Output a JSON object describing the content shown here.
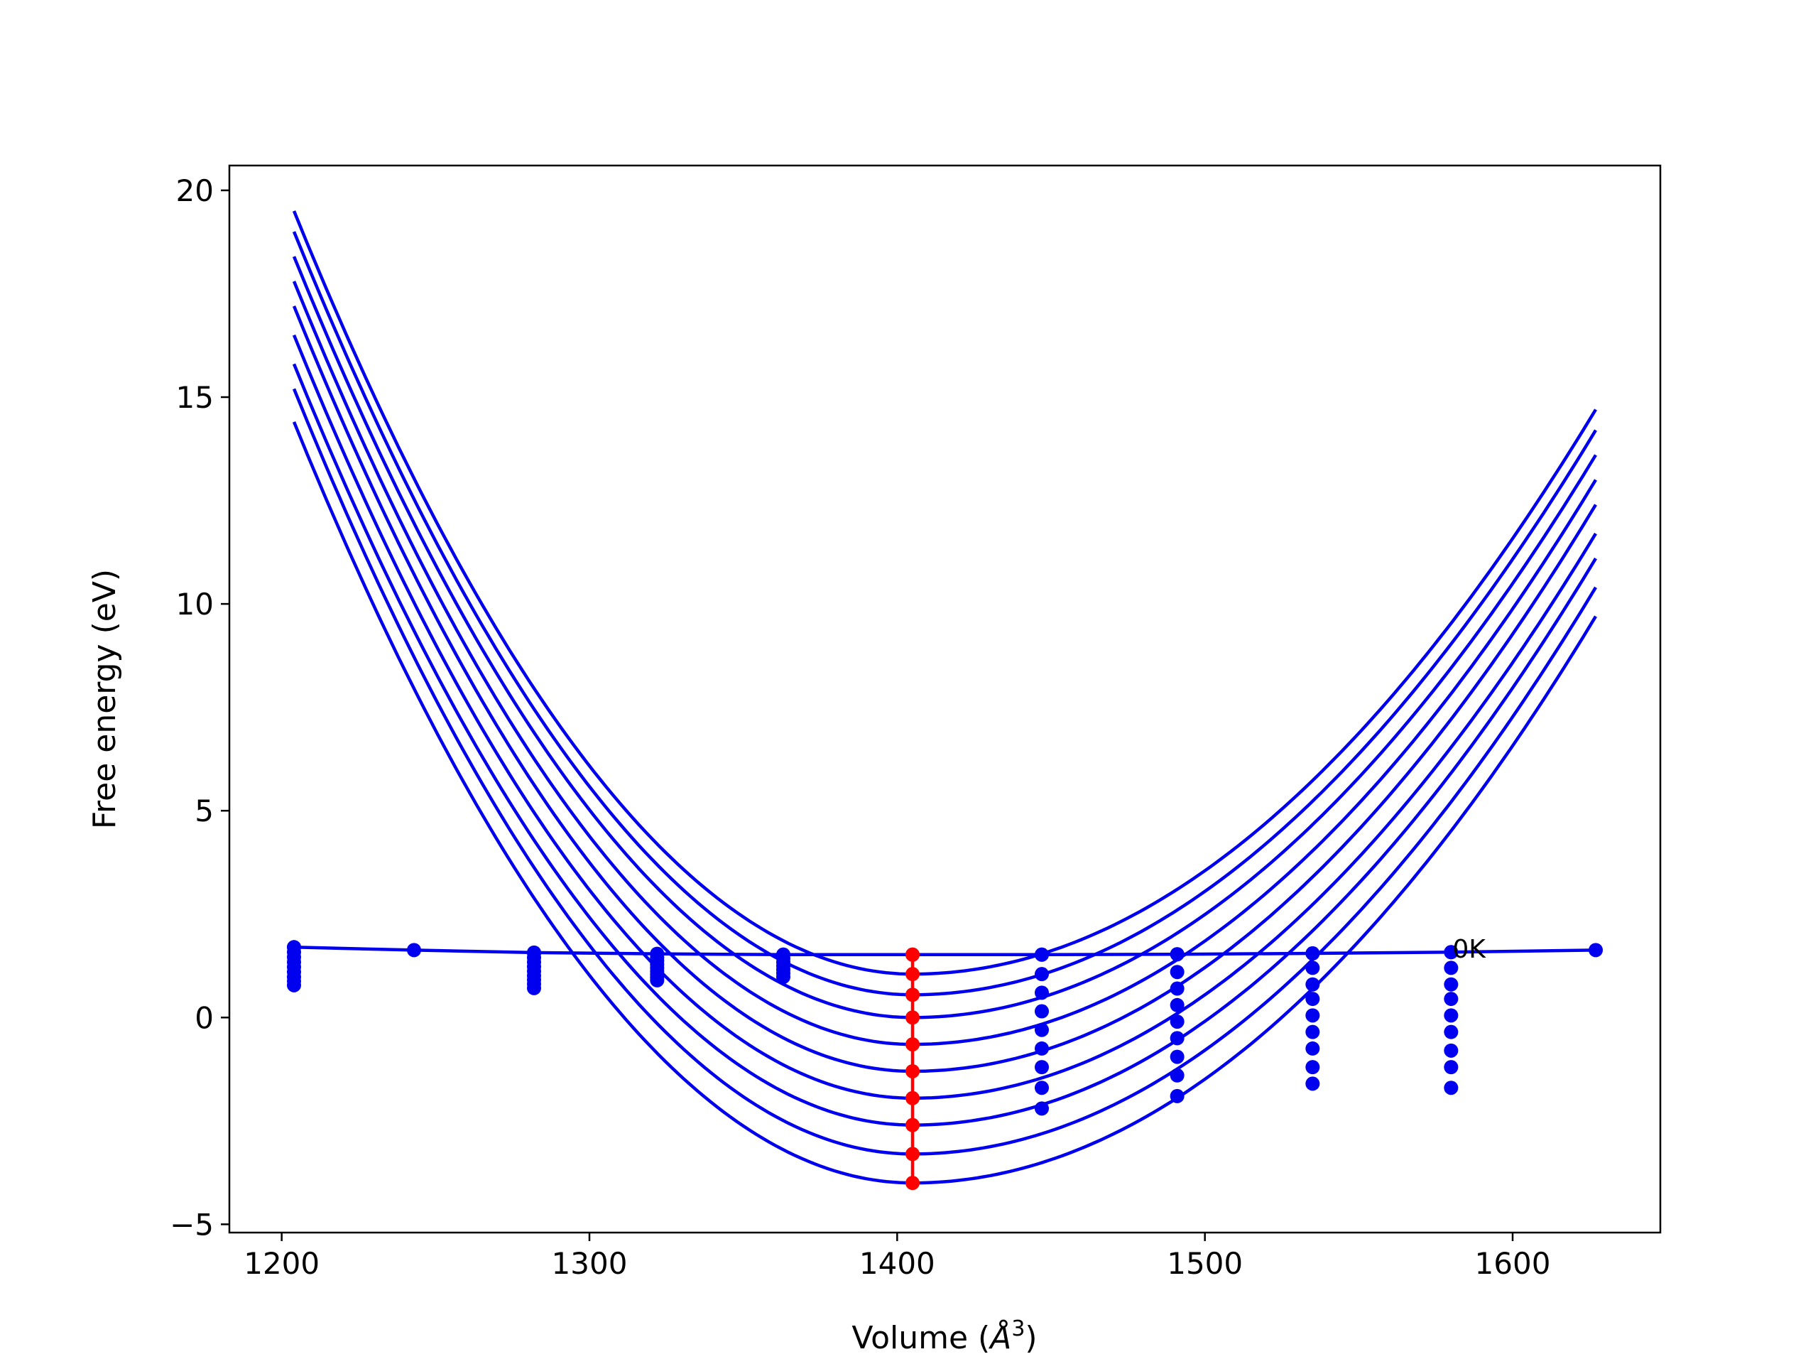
{
  "chart_data": {
    "type": "line",
    "title": "",
    "xlabel": "Volume (",
    "xlabel_unit": "Å",
    "xlabel_sup": "3",
    "xlabel_close": ")",
    "ylabel": "Free energy (eV)",
    "xlim": [
      1183,
      1648
    ],
    "ylim": [
      -5.2,
      20.6
    ],
    "xticks": [
      1200,
      1300,
      1400,
      1500,
      1600
    ],
    "yticks": [
      -5,
      0,
      5,
      10,
      15,
      20
    ],
    "xtick_labels": [
      "1200",
      "1300",
      "1400",
      "1500",
      "1600"
    ],
    "ytick_labels": [
      "−5",
      "0",
      "5",
      "10",
      "15",
      "20"
    ],
    "grid": false,
    "legend": "none",
    "colors": {
      "curves": "#0000ee",
      "points": "#0000ee",
      "highlight": "#ff0000",
      "axes": "#000000"
    },
    "annotation": {
      "text": "0K",
      "x": 1580,
      "y": 1.55
    },
    "curve_domain": [
      1204,
      1627
    ],
    "fit_curves": [
      {
        "v0": 1405.0,
        "minimum": -4.0,
        "left_end": 14.4,
        "right_end": 9.7
      },
      {
        "v0": 1405.0,
        "minimum": -3.3,
        "left_end": 15.2,
        "right_end": 10.4
      },
      {
        "v0": 1405.0,
        "minimum": -2.6,
        "left_end": 15.8,
        "right_end": 11.1
      },
      {
        "v0": 1405.0,
        "minimum": -1.95,
        "left_end": 16.5,
        "right_end": 11.7
      },
      {
        "v0": 1405.0,
        "minimum": -1.3,
        "left_end": 17.2,
        "right_end": 12.4
      },
      {
        "v0": 1405.0,
        "minimum": -0.65,
        "left_end": 17.8,
        "right_end": 13.0
      },
      {
        "v0": 1405.0,
        "minimum": 0.0,
        "left_end": 18.4,
        "right_end": 13.6
      },
      {
        "v0": 1405.0,
        "minimum": 0.55,
        "left_end": 19.0,
        "right_end": 14.2
      },
      {
        "v0": 1405.0,
        "minimum": 1.05,
        "left_end": 19.5,
        "right_end": 14.7
      }
    ],
    "zero_k_line": {
      "x": [
        1204,
        1243,
        1282,
        1322,
        1363,
        1405,
        1447,
        1491,
        1535,
        1580,
        1627
      ],
      "y": [
        1.7,
        1.63,
        1.57,
        1.54,
        1.52,
        1.52,
        1.52,
        1.53,
        1.55,
        1.58,
        1.63
      ]
    },
    "point_columns": [
      {
        "x": 1204,
        "y": [
          1.7,
          1.58,
          1.46,
          1.34,
          1.22,
          1.1,
          0.98,
          0.88,
          0.78
        ]
      },
      {
        "x": 1282,
        "y": [
          1.56,
          1.45,
          1.34,
          1.23,
          1.12,
          1.01,
          0.91,
          0.81,
          0.71
        ]
      },
      {
        "x": 1322,
        "y": [
          1.53,
          1.45,
          1.37,
          1.28,
          1.2,
          1.12,
          1.04,
          0.97,
          0.9
        ]
      },
      {
        "x": 1363,
        "y": [
          1.52,
          1.43,
          1.34,
          1.25,
          1.16,
          1.07,
          0.98
        ]
      },
      {
        "x": 1447,
        "y": [
          1.52,
          1.05,
          0.6,
          0.15,
          -0.3,
          -0.75,
          -1.2,
          -1.7,
          -2.2
        ]
      },
      {
        "x": 1491,
        "y": [
          1.53,
          1.1,
          0.7,
          0.3,
          -0.1,
          -0.5,
          -0.95,
          -1.4,
          -1.9
        ]
      },
      {
        "x": 1535,
        "y": [
          1.55,
          1.2,
          0.8,
          0.45,
          0.05,
          -0.35,
          -0.75,
          -1.2,
          -1.6
        ]
      },
      {
        "x": 1580,
        "y": [
          1.58,
          1.2,
          0.8,
          0.45,
          0.05,
          -0.35,
          -0.8,
          -1.2,
          -1.7
        ]
      }
    ],
    "highlight_column": {
      "x": 1405,
      "y": [
        1.52,
        1.05,
        0.55,
        0.0,
        -0.65,
        -1.3,
        -1.95,
        -2.6,
        -3.3,
        -4.0
      ]
    }
  }
}
